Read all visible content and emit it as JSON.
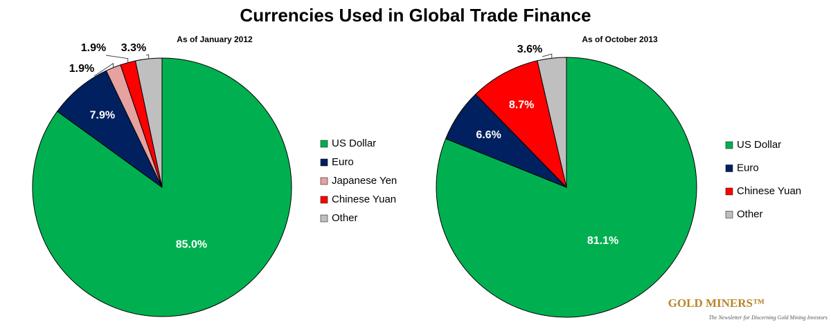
{
  "title": "Currencies Used in Global Trade Finance",
  "chart_data": [
    {
      "type": "pie",
      "subtitle": "As of January 2012",
      "categories": [
        "US Dollar",
        "Euro",
        "Japanese Yen",
        "Chinese Yuan",
        "Other"
      ],
      "values": [
        85.0,
        7.9,
        1.9,
        1.9,
        3.3
      ],
      "value_labels": [
        "85.0%",
        "7.9%",
        "1.9%",
        "1.9%",
        "3.3%"
      ],
      "colors": [
        "#00b050",
        "#002060",
        "#e6a1a1",
        "#ff0000",
        "#bfbfbf"
      ]
    },
    {
      "type": "pie",
      "subtitle": "As of October 2013",
      "categories": [
        "US Dollar",
        "Euro",
        "Chinese Yuan",
        "Other"
      ],
      "values": [
        81.1,
        6.6,
        8.7,
        3.6
      ],
      "value_labels": [
        "81.1%",
        "6.6%",
        "8.7%",
        "3.6%"
      ],
      "colors": [
        "#00b050",
        "#002060",
        "#ff0000",
        "#bfbfbf"
      ]
    }
  ],
  "logo": {
    "name": "GOLD MINERS™",
    "tagline": "The Newsletter for Discerning Gold Mining Investors"
  }
}
